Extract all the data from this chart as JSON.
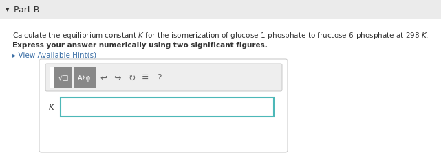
{
  "bg_color": "#f0f0f0",
  "white_bg": "#ffffff",
  "part_label": "Part B",
  "arrow_symbol": "▾",
  "hint_text": "▸ View Available Hint(s)",
  "hint_color": "#3a6ea5",
  "k_label_italic": "K",
  "k_equals": " =",
  "toolbar_bg": "#e8e8e8",
  "toolbar_border": "#bbbbbb",
  "input_border": "#4db8b8",
  "input_bg": "#ffffff",
  "text_color": "#333333",
  "part_label_color": "#333333",
  "box_border": "#cccccc",
  "box_bg": "#ffffff",
  "line2_text": "Express your answer numerically using two significant figures.",
  "btn_color": "#7a7a7a",
  "btn_dark": "#555555"
}
